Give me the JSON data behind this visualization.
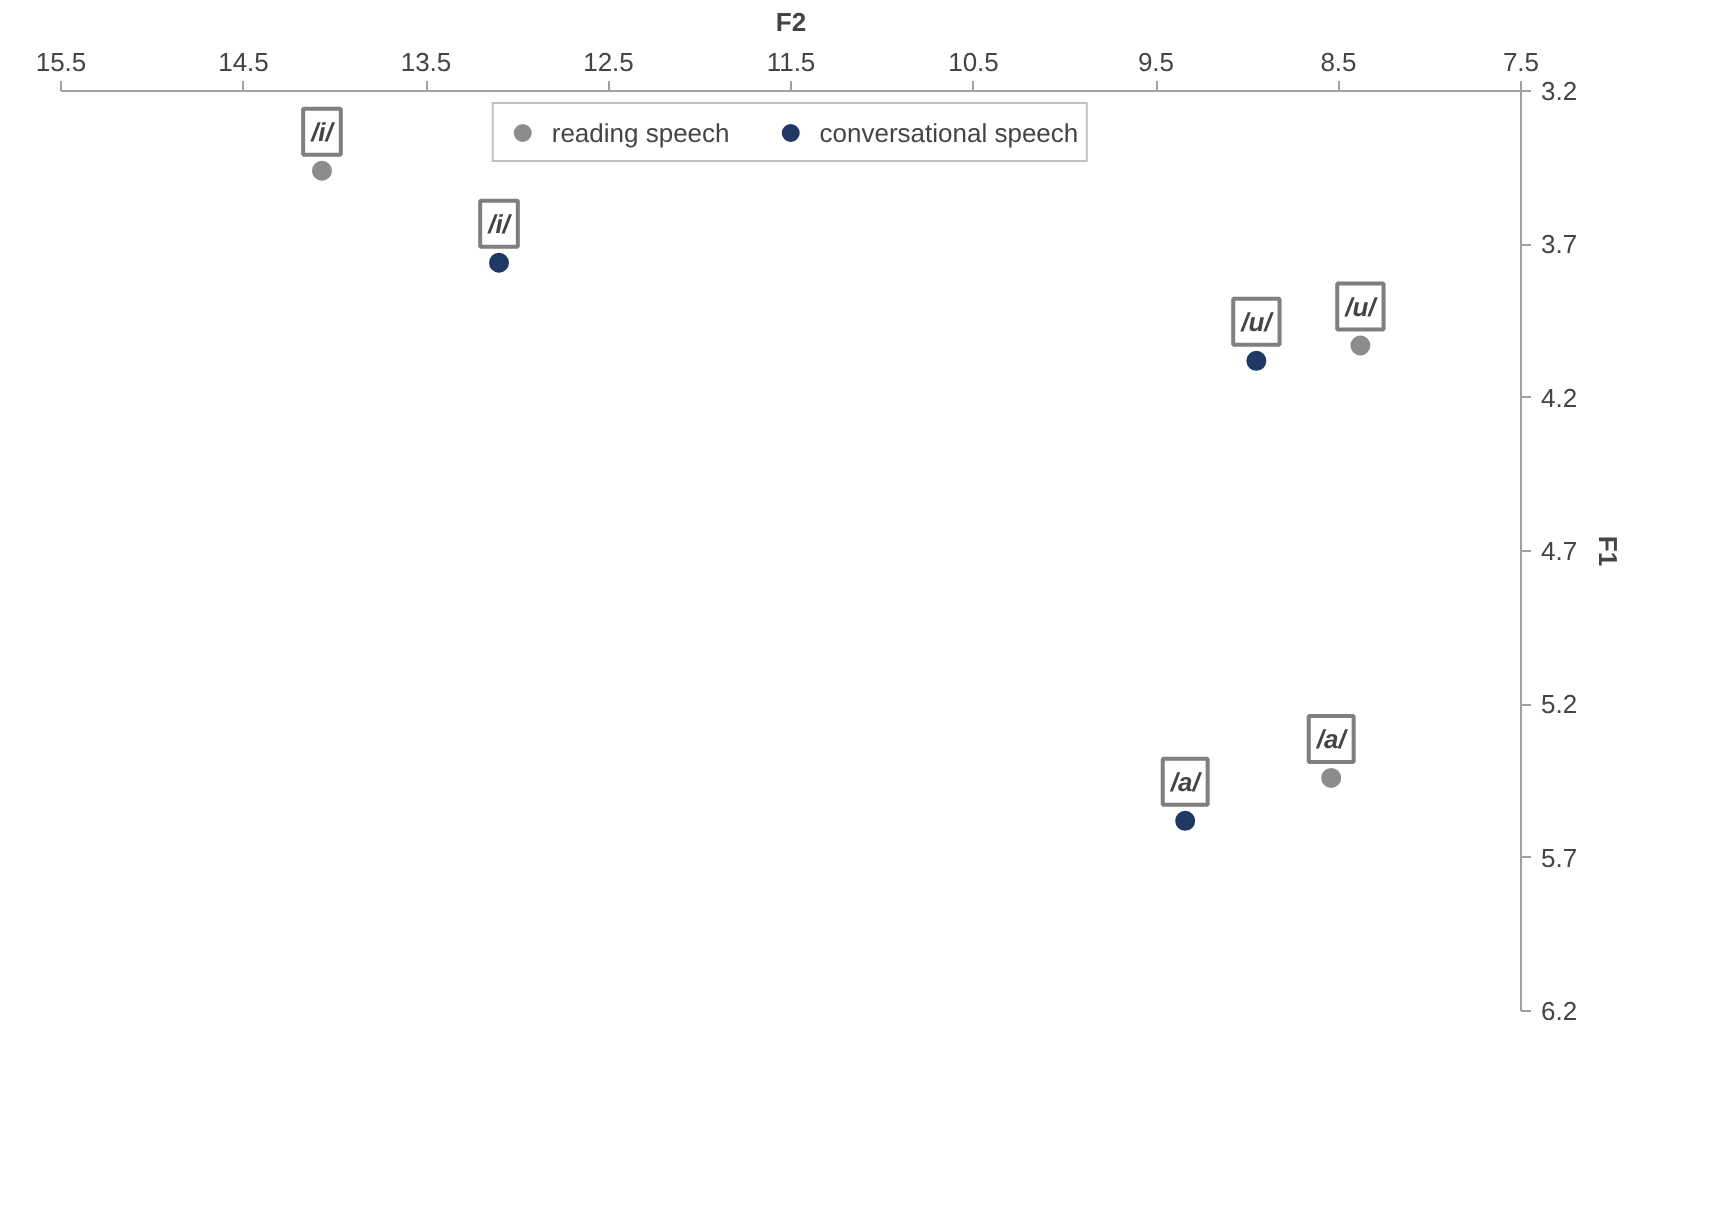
{
  "chart_data": {
    "type": "scatter",
    "xlabel": "F2",
    "ylabel": "F1",
    "xlim": [
      15.5,
      7.5
    ],
    "ylim": [
      6.2,
      3.2
    ],
    "xticks": [
      15.5,
      14.5,
      13.5,
      12.5,
      11.5,
      10.5,
      9.5,
      8.5,
      7.5
    ],
    "yticks": [
      3.2,
      3.7,
      4.2,
      4.7,
      5.2,
      5.7,
      6.2
    ],
    "marker": "circle",
    "legend": "top",
    "grid": false,
    "series": [
      {
        "name": "reading speech",
        "color": "#8c8c8c",
        "x": [
          14.07,
          8.38,
          8.54
        ],
        "values": [
          3.46,
          4.03,
          5.44
        ]
      },
      {
        "name": "conversational speech",
        "color": "#1f3864",
        "x": [
          13.1,
          8.95,
          9.34
        ],
        "values": [
          3.76,
          4.08,
          5.58
        ]
      }
    ],
    "annotations": [
      {
        "text": "/i/",
        "x": 14.07,
        "y": 3.46
      },
      {
        "text": "/u/",
        "x": 8.38,
        "y": 4.03
      },
      {
        "text": "/a/",
        "x": 8.54,
        "y": 5.44
      },
      {
        "text": "/i/",
        "x": 13.1,
        "y": 3.76
      },
      {
        "text": "/u/",
        "x": 8.95,
        "y": 4.08
      },
      {
        "text": "/a/",
        "x": 9.34,
        "y": 5.58
      }
    ]
  }
}
